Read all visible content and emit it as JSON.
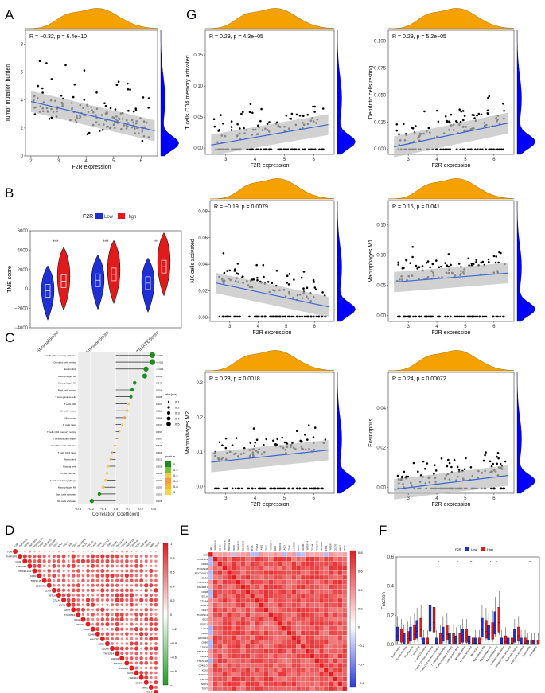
{
  "panels": {
    "A": "A",
    "B": "B",
    "C": "C",
    "D": "D",
    "E": "E",
    "F": "F",
    "G": "G"
  },
  "colors": {
    "density_top": "#f5a100",
    "density_side": "#0000ff",
    "point": "#000000",
    "regression": "#3a66d6",
    "ci": "#bdbdbd",
    "low": "#1f2fd6",
    "high": "#e01b1b",
    "corr_pos": "#e41a1c",
    "corr_neg": "#1aa31a"
  },
  "chart_data": [
    {
      "id": "A",
      "type": "scatter",
      "title": "R = −0.32, p = 6.4e−10",
      "xlabel": "F2R expression",
      "ylabel": "Tumor mutation burden",
      "xlim": [
        1.8,
        6.6
      ],
      "ylim": [
        0,
        9
      ],
      "xticks": [
        "2",
        "3",
        "4",
        "5",
        "6"
      ],
      "yticks": [
        "0",
        "2",
        "4",
        "6",
        "8"
      ],
      "fit": {
        "x": [
          2,
          6.5
        ],
        "y": [
          3.9,
          1.8
        ]
      }
    },
    {
      "id": "B",
      "type": "violin",
      "ylabel": "TME score",
      "legend_title": "F2R",
      "legend_low": "Low",
      "legend_high": "High",
      "categories": [
        "StromalScore",
        "ImmuneScore",
        "ESTIMATEScore"
      ],
      "significance": [
        "***",
        "***",
        "***"
      ],
      "yticks": [
        "6000",
        "4000",
        "2000",
        "0",
        "−2000",
        "−4000"
      ],
      "ylim": [
        -4000,
        6000
      ],
      "series": [
        {
          "name": "Low",
          "medians": [
            -200,
            900,
            600
          ]
        },
        {
          "name": "High",
          "medians": [
            800,
            1500,
            2300
          ]
        }
      ]
    },
    {
      "id": "C",
      "type": "lollipop",
      "xlabel": "Correlation Coefficient",
      "xticks": [
        "−0.3",
        "−0.2",
        "−0.1",
        "0.0",
        "0.1",
        "0.2",
        "0.3"
      ],
      "xlim": [
        -0.3,
        0.3
      ],
      "size_legend_title": "abs(cor)",
      "size_legend": [
        "0.1",
        "0.2",
        "0.3",
        "0.4",
        "0.5"
      ],
      "color_legend_title": "pvalue",
      "color_legend": [
        "0",
        "0.2",
        "0.4",
        "0.6",
        "0.8",
        "1"
      ],
      "categories": [
        "T cells CD4 memory activated",
        "Dendritic cells resting",
        "Eosinophils",
        "Macrophages M2",
        "Macrophages M1",
        "Mast cells resting",
        "T cells gamma delta",
        "T cells CD8",
        "NK cells resting",
        "Monocytes",
        "B cells naive",
        "T cells CD4 memory resting",
        "T cells follicular helper",
        "Dendritic cells activated",
        "T cells CD4 naive",
        "Neutrophils",
        "Plasma cells",
        "B cells memory",
        "T cells regulatory (Tregs)",
        "Macrophages M0",
        "Mast cells activated",
        "NK cells activated"
      ],
      "values": [
        0.29,
        0.29,
        0.24,
        0.23,
        0.15,
        0.13,
        0.12,
        0.1,
        0.09,
        0.07,
        0.05,
        0.03,
        0.02,
        -0.01,
        -0.03,
        -0.04,
        -0.06,
        -0.07,
        -0.08,
        -0.1,
        -0.13,
        -0.19
      ],
      "pvalues": [
        "<0.001",
        "<0.001",
        "<0.001",
        "0.002",
        "0.041",
        "0.056",
        "0.088",
        "0.103",
        "0.111",
        "0.386",
        "0.630",
        "0.597",
        "0.897",
        "0.828",
        "0.366",
        "0.315",
        "0.256",
        "0.252",
        "0.231",
        "0.193",
        "0.053",
        "0.008"
      ]
    },
    {
      "id": "D",
      "type": "heatmap",
      "genes": [
        "F2R",
        "TNFRSF9",
        "CD40",
        "TNFRSF8",
        "PDCD1LG2",
        "CD80",
        "TNFSF15",
        "CD200R1",
        "CD28",
        "BTLA",
        "CTLA4",
        "LAIR1",
        "CD27",
        "TNFRSF4",
        "IDO2",
        "PDCD1",
        "LAG3",
        "CD48",
        "HAVCR2",
        "CD86",
        "CD200",
        "TNFSF14",
        "CD244",
        "TNFSF18",
        "CD40LG",
        "ICOS",
        "TNFSF4",
        "CD276",
        "NRP1",
        "TIGIT"
      ],
      "colorbar": [
        "1",
        "0.8",
        "0.6",
        "0.4",
        "0.2",
        "0",
        "−0.2",
        "−0.4",
        "−0.6",
        "−0.8",
        "−1"
      ]
    },
    {
      "id": "E",
      "type": "heatmap",
      "genes": [
        "F2R",
        "TNFRSF9",
        "CD40",
        "TNFRSF8",
        "PDCD1LG2",
        "CD80",
        "TNFSF15",
        "CD200R1",
        "CD28",
        "BTLA",
        "CTLA4",
        "LAIR1",
        "CD27",
        "TNFRSF4",
        "IDO2",
        "PDCD1",
        "LAG3",
        "CD48",
        "HAVCR2",
        "CD86",
        "CD200",
        "TNFSF14",
        "CD244",
        "TNFSF18",
        "CD40LG",
        "ICOS",
        "TNFSF4",
        "CD276",
        "NRP1",
        "TIGIT"
      ],
      "colorbar": [
        "0.8",
        "0.6",
        "0.4",
        "0.2",
        "0",
        "−0.2",
        "−0.4",
        "−0.6"
      ]
    },
    {
      "id": "F",
      "type": "box",
      "ylabel": "Fraction",
      "legend_title": "F2R",
      "legend_low": "Low",
      "legend_high": "High",
      "yticks": [
        "0.6",
        "0.4",
        "0.2",
        "0.0"
      ],
      "ylim": [
        0,
        0.6
      ],
      "categories": [
        "B cells naive",
        "B cells memory",
        "Plasma cells",
        "T cells CD8",
        "T cells CD4 naive",
        "T cells CD4 memory resting",
        "T cells CD4 memory activated",
        "T cells follicular helper",
        "T cells regulatory (Tregs)",
        "T cells gamma delta",
        "NK cells resting",
        "NK cells activated",
        "Monocytes",
        "Macrophages M0",
        "Macrophages M1",
        "Macrophages M2",
        "Dendritic cells resting",
        "Dendritic cells activated",
        "Mast cells resting",
        "Mast cells activated",
        "Eosinophils",
        "Neutrophils"
      ],
      "significance": [
        "",
        "",
        "",
        "",
        "",
        "",
        "**",
        "",
        "",
        "*",
        "",
        "**",
        "",
        "",
        "*",
        "*",
        "",
        "",
        "",
        "",
        "**",
        ""
      ],
      "series": [
        {
          "name": "Low",
          "medians": [
            0.06,
            0.03,
            0.06,
            0.09,
            0.01,
            0.16,
            0.01,
            0.06,
            0.03,
            0.02,
            0.05,
            0.02,
            0.01,
            0.1,
            0.07,
            0.13,
            0.01,
            0.01,
            0.05,
            0.01,
            0.0,
            0.0
          ]
        },
        {
          "name": "High",
          "medians": [
            0.05,
            0.04,
            0.07,
            0.1,
            0.01,
            0.15,
            0.03,
            0.07,
            0.03,
            0.03,
            0.05,
            0.01,
            0.01,
            0.09,
            0.08,
            0.15,
            0.02,
            0.01,
            0.06,
            0.01,
            0.0,
            0.0
          ]
        }
      ]
    },
    {
      "id": "G1",
      "type": "scatter",
      "title": "R = 0.29, p = 4.3e−05",
      "xlabel": "F2R expression",
      "ylabel": "T cells CD4 memory activated",
      "xticks": [
        "3",
        "4",
        "5",
        "6"
      ],
      "yticks": [
        "0.00",
        "0.05",
        "0.10",
        "0.15"
      ],
      "xlim": [
        2.3,
        6.7
      ],
      "ylim": [
        -0.01,
        0.19
      ],
      "fit": {
        "x": [
          2.5,
          6.5
        ],
        "y": [
          0.005,
          0.038
        ]
      }
    },
    {
      "id": "G2",
      "type": "scatter",
      "title": "R = 0.29, p = 5.2e−05",
      "xlabel": "F2R expression",
      "ylabel": "Dendritic cells resting",
      "xticks": [
        "3",
        "4",
        "5",
        "6"
      ],
      "yticks": [
        "0.000",
        "0.025",
        "0.050",
        "0.075",
        "0.100"
      ],
      "xlim": [
        2.3,
        6.7
      ],
      "ylim": [
        -0.005,
        0.11
      ],
      "fit": {
        "x": [
          2.5,
          6.5
        ],
        "y": [
          0.002,
          0.024
        ]
      }
    },
    {
      "id": "G3",
      "type": "scatter",
      "title": "R = −0.19, p = 0.0079",
      "xlabel": "F2R expression",
      "ylabel": "NK cells activated",
      "xticks": [
        "3",
        "4",
        "5",
        "6"
      ],
      "yticks": [
        "0.00",
        "0.02",
        "0.04",
        "0.06",
        "0.08"
      ],
      "xlim": [
        2.3,
        6.7
      ],
      "ylim": [
        -0.003,
        0.088
      ],
      "fit": {
        "x": [
          2.5,
          6.5
        ],
        "y": [
          0.026,
          0.008
        ]
      }
    },
    {
      "id": "G4",
      "type": "scatter",
      "title": "R = 0.15, p = 0.041",
      "xlabel": "F2R expression",
      "ylabel": "Macrophages M1",
      "xticks": [
        "3",
        "4",
        "5",
        "6"
      ],
      "yticks": [
        "0.00",
        "0.05",
        "0.10",
        "0.15"
      ],
      "xlim": [
        2.3,
        6.7
      ],
      "ylim": [
        -0.01,
        0.19
      ],
      "fit": {
        "x": [
          2.5,
          6.5
        ],
        "y": [
          0.055,
          0.07
        ]
      }
    },
    {
      "id": "G5",
      "type": "scatter",
      "title": "R = 0.23, p = 0.0018",
      "xlabel": "F2R expression",
      "ylabel": "Macrophages M2",
      "xticks": [
        "3",
        "4",
        "5",
        "6"
      ],
      "yticks": [
        "0.0",
        "0.1",
        "0.2",
        "0.3"
      ],
      "xlim": [
        2.3,
        6.7
      ],
      "ylim": [
        -0.02,
        0.33
      ],
      "fit": {
        "x": [
          2.5,
          6.5
        ],
        "y": [
          0.07,
          0.105
        ]
      }
    },
    {
      "id": "G6",
      "type": "scatter",
      "title": "R = 0.24, p = 0.00072",
      "xlabel": "F2R expression",
      "ylabel": "Eosinophils",
      "xticks": [
        "3",
        "4",
        "5",
        "6"
      ],
      "yticks": [
        "0.00",
        "0.02",
        "0.04"
      ],
      "xlim": [
        2.3,
        6.7
      ],
      "ylim": [
        -0.003,
        0.058
      ],
      "fit": {
        "x": [
          2.5,
          6.5
        ],
        "y": [
          -0.001,
          0.006
        ]
      }
    }
  ]
}
